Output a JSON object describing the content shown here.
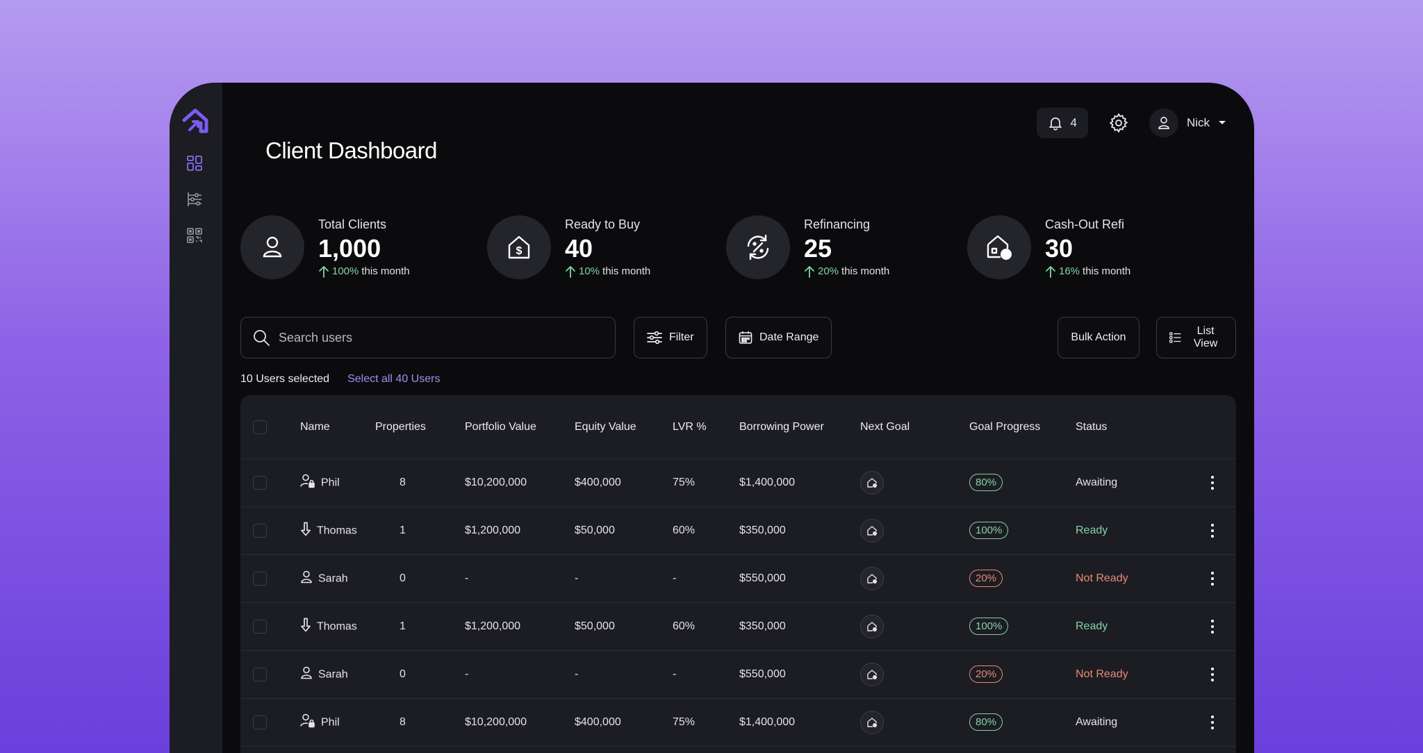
{
  "header": {
    "title": "Client Dashboard",
    "notifications_count": "4",
    "user_name": "Nick"
  },
  "sidebar": {
    "items": [
      {
        "icon": "dashboard-grid-icon"
      },
      {
        "icon": "sliders-icon"
      },
      {
        "icon": "qr-code-icon"
      }
    ]
  },
  "stats": [
    {
      "label": "Total Clients",
      "value": "1,000",
      "delta": "100%",
      "delta_suffix": "this month",
      "icon": "user-icon"
    },
    {
      "label": "Ready to Buy",
      "value": "40",
      "delta": "10%",
      "delta_suffix": "this month",
      "icon": "house-dollar-icon"
    },
    {
      "label": "Refinancing",
      "value": "25",
      "delta": "20%",
      "delta_suffix": "this month",
      "icon": "refresh-percent-icon"
    },
    {
      "label": "Cash-Out Refi",
      "value": "30",
      "delta": "16%",
      "delta_suffix": "this month",
      "icon": "house-coin-icon"
    }
  ],
  "toolbar": {
    "search_placeholder": "Search users",
    "filter_label": "Filter",
    "date_range_label": "Date Range",
    "bulk_action_label": "Bulk Action",
    "list_view_label": "List View"
  },
  "selection": {
    "count_text": "10 Users selected",
    "select_all_text": "Select all 40 Users"
  },
  "table": {
    "columns": [
      "Name",
      "Properties",
      "Portfolio Value",
      "Equity Value",
      "LVR %",
      "Borrowing Power",
      "Next Goal",
      "Goal Progress",
      "Status"
    ],
    "rows": [
      {
        "name": "Phil",
        "icon": "user-lock-icon",
        "properties": "8",
        "portfolio": "$10,200,000",
        "equity": "$400,000",
        "lvr": "75%",
        "borrowing": "$1,400,000",
        "progress": "80%",
        "progress_tone": "green",
        "status": "Awaiting",
        "status_tone": "awaiting"
      },
      {
        "name": "Thomas",
        "icon": "arrow-down-icon",
        "properties": "1",
        "portfolio": "$1,200,000",
        "equity": "$50,000",
        "lvr": "60%",
        "borrowing": "$350,000",
        "progress": "100%",
        "progress_tone": "green",
        "status": "Ready",
        "status_tone": "ready"
      },
      {
        "name": "Sarah",
        "icon": "user-icon",
        "properties": "0",
        "portfolio": "-",
        "equity": "-",
        "lvr": "-",
        "borrowing": "$550,000",
        "progress": "20%",
        "progress_tone": "red",
        "status": "Not Ready",
        "status_tone": "notready"
      },
      {
        "name": "Thomas",
        "icon": "arrow-down-icon",
        "properties": "1",
        "portfolio": "$1,200,000",
        "equity": "$50,000",
        "lvr": "60%",
        "borrowing": "$350,000",
        "progress": "100%",
        "progress_tone": "green",
        "status": "Ready",
        "status_tone": "ready"
      },
      {
        "name": "Sarah",
        "icon": "user-icon",
        "properties": "0",
        "portfolio": "-",
        "equity": "-",
        "lvr": "-",
        "borrowing": "$550,000",
        "progress": "20%",
        "progress_tone": "red",
        "status": "Not Ready",
        "status_tone": "notready"
      },
      {
        "name": "Phil",
        "icon": "user-lock-icon",
        "properties": "8",
        "portfolio": "$10,200,000",
        "equity": "$400,000",
        "lvr": "75%",
        "borrowing": "$1,400,000",
        "progress": "80%",
        "progress_tone": "green",
        "status": "Awaiting",
        "status_tone": "awaiting"
      }
    ]
  },
  "colors": {
    "accent": "#a38cf2",
    "positive": "#86d3a4",
    "negative": "#e98a75",
    "panel": "#1c1c23",
    "background": "#0b0b0d"
  }
}
